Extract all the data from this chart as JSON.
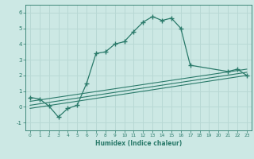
{
  "xlabel": "Humidex (Indice chaleur)",
  "bg_color": "#cce8e4",
  "grid_color": "#b8d8d4",
  "line_color": "#2a7a6a",
  "xlim": [
    -0.5,
    23.5
  ],
  "ylim": [
    -1.5,
    6.5
  ],
  "xticks": [
    0,
    1,
    2,
    3,
    4,
    5,
    6,
    7,
    8,
    9,
    10,
    11,
    12,
    13,
    14,
    15,
    16,
    17,
    18,
    19,
    20,
    21,
    22,
    23
  ],
  "yticks": [
    -1,
    0,
    1,
    2,
    3,
    4,
    5,
    6
  ],
  "curve1_x": [
    0,
    1,
    2,
    3,
    4,
    5,
    6,
    7,
    8,
    9,
    10,
    11,
    12,
    13,
    14,
    15,
    16,
    17,
    21,
    22,
    23
  ],
  "curve1_y": [
    0.6,
    0.5,
    0.05,
    -0.65,
    -0.1,
    0.1,
    1.5,
    3.4,
    3.5,
    4.0,
    4.15,
    4.8,
    5.4,
    5.75,
    5.5,
    5.65,
    5.0,
    2.65,
    2.25,
    2.4,
    2.0
  ],
  "line1_x": [
    0,
    23
  ],
  "line1_y": [
    -0.1,
    2.0
  ],
  "line2_x": [
    0,
    23
  ],
  "line2_y": [
    0.1,
    2.2
  ],
  "line3_x": [
    0,
    23
  ],
  "line3_y": [
    0.35,
    2.4
  ]
}
